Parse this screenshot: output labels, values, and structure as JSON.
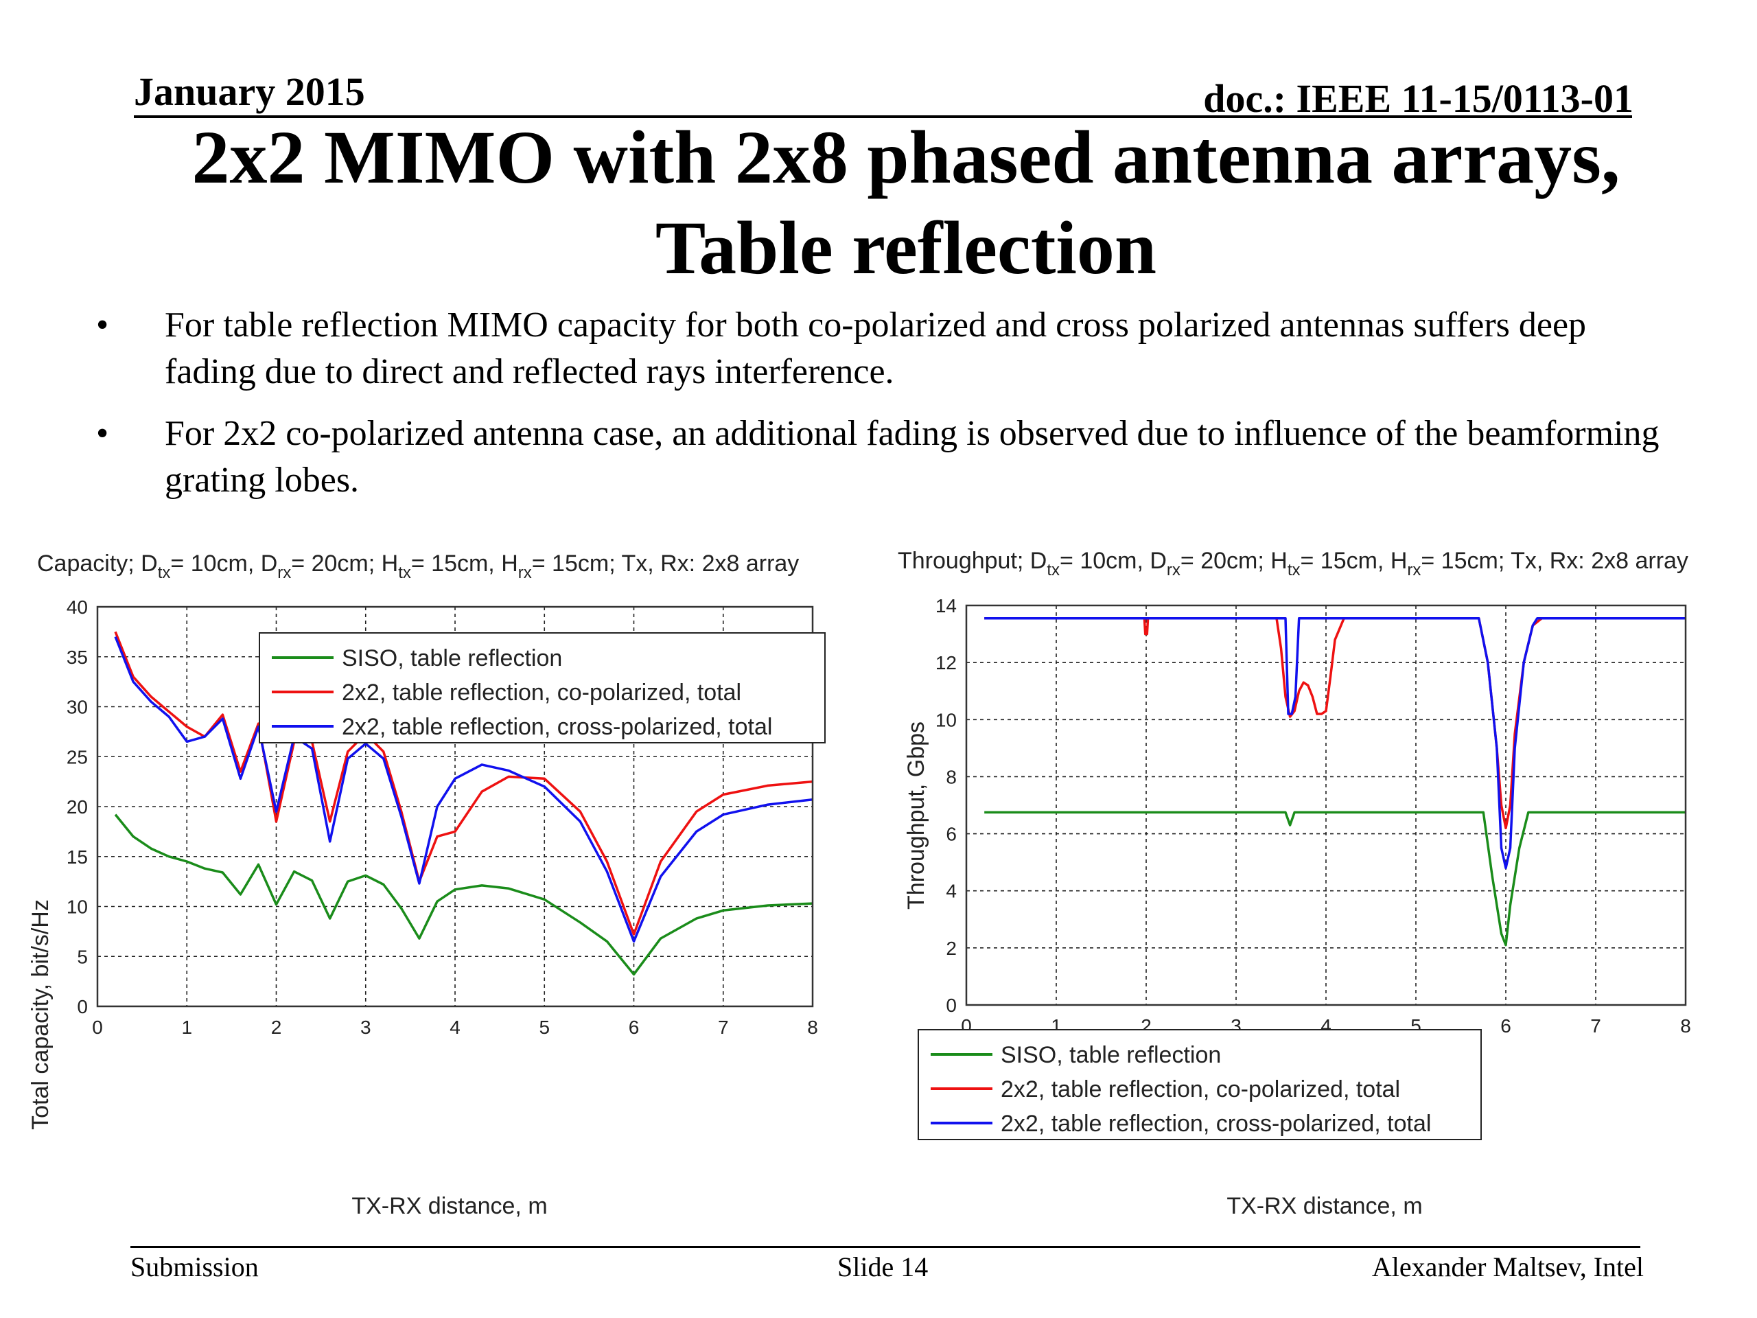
{
  "header": {
    "date": "January 2015",
    "doc": "doc.: IEEE 11-15/0113-01"
  },
  "title": {
    "line1": "2x2 MIMO with 2x8 phased antenna arrays,",
    "line2": "Table reflection"
  },
  "bullets": [
    {
      "marker": "•",
      "text": "For table reflection MIMO capacity for both co-polarized and cross polarized antennas suffers deep fading due to direct and reflected rays interference."
    },
    {
      "marker": "•",
      "text": "For 2x2 co-polarized antenna case, an additional fading is observed due to influence of the beamforming grating lobes."
    }
  ],
  "footer": {
    "left": "Submission",
    "center": "Slide 14",
    "right": "Alexander Maltsev, Intel"
  },
  "colors": {
    "siso": "#1a8c1a",
    "co_pol": "#ee1111",
    "cross_pol": "#1111ee"
  },
  "chart_data": [
    {
      "type": "line",
      "title": "Capacity; D_tx= 10cm, D_rx= 20cm; H_tx= 15cm, H_rx= 15cm; Tx, Rx: 2x8 array",
      "xlabel": "TX-RX distance, m",
      "ylabel": "Total capacity, bit/s/Hz",
      "xlim": [
        0,
        8
      ],
      "ylim": [
        0,
        40
      ],
      "xticks": [
        "0",
        "1",
        "2",
        "3",
        "4",
        "5",
        "6",
        "7",
        "8"
      ],
      "yticks": [
        "0",
        "5",
        "10",
        "15",
        "20",
        "25",
        "30",
        "35",
        "40"
      ],
      "grid": true,
      "legend_position": "top-right",
      "series": [
        {
          "name": "SISO, table reflection",
          "x": [
            0.2,
            0.4,
            0.6,
            0.8,
            1.0,
            1.2,
            1.4,
            1.6,
            1.8,
            2.0,
            2.2,
            2.4,
            2.6,
            2.8,
            3.0,
            3.2,
            3.4,
            3.6,
            3.8,
            4.0,
            4.3,
            4.6,
            5.0,
            5.4,
            5.7,
            6.0,
            6.3,
            6.7,
            7.0,
            7.5,
            8.0
          ],
          "y": [
            19.2,
            17,
            15.8,
            15,
            14.5,
            13.8,
            13.4,
            11.2,
            14.2,
            10.2,
            13.5,
            12.6,
            8.8,
            12.5,
            13.1,
            12.2,
            9.8,
            6.8,
            10.5,
            11.7,
            12.1,
            11.8,
            10.7,
            8.4,
            6.5,
            3.2,
            6.8,
            8.8,
            9.6,
            10.1,
            10.3
          ]
        },
        {
          "name": "2x2, table reflection, co-polarized, total",
          "x": [
            0.2,
            0.4,
            0.6,
            0.8,
            1.0,
            1.2,
            1.4,
            1.6,
            1.8,
            2.0,
            2.2,
            2.4,
            2.6,
            2.8,
            3.0,
            3.2,
            3.4,
            3.6,
            3.8,
            4.0,
            4.3,
            4.6,
            5.0,
            5.4,
            5.7,
            6.0,
            6.3,
            6.7,
            7.0,
            7.5,
            8.0
          ],
          "y": [
            37.5,
            33,
            31,
            29.5,
            28,
            27,
            29.2,
            23.5,
            28.3,
            18.5,
            26.5,
            26.5,
            18.5,
            25.5,
            27.3,
            25.5,
            19.5,
            12.5,
            17,
            17.5,
            21.5,
            23,
            22.8,
            19.5,
            14.5,
            7.2,
            14.5,
            19.5,
            21.2,
            22.1,
            22.5
          ]
        },
        {
          "name": "2x2, table reflection, cross-polarized, total",
          "x": [
            0.2,
            0.4,
            0.6,
            0.8,
            1.0,
            1.2,
            1.4,
            1.6,
            1.8,
            2.0,
            2.2,
            2.4,
            2.6,
            2.8,
            3.0,
            3.2,
            3.4,
            3.6,
            3.8,
            4.0,
            4.3,
            4.6,
            5.0,
            5.4,
            5.7,
            6.0,
            6.3,
            6.7,
            7.0,
            7.5,
            8.0
          ],
          "y": [
            37,
            32.5,
            30.5,
            29,
            26.5,
            27,
            28.8,
            22.8,
            28,
            19.5,
            27,
            25.8,
            16.5,
            24.8,
            26.3,
            24.8,
            19,
            12.3,
            20,
            22.8,
            24.2,
            23.6,
            22,
            18.5,
            13.5,
            6.5,
            13,
            17.5,
            19.2,
            20.2,
            20.7
          ]
        }
      ]
    },
    {
      "type": "line",
      "title": "Throughput; D_tx= 10cm, D_rx= 20cm; H_tx= 15cm, H_rx= 15cm; Tx, Rx: 2x8 array",
      "xlabel": "TX-RX distance, m",
      "ylabel": "Throughput, Gbps",
      "xlim": [
        0,
        8
      ],
      "ylim": [
        0,
        14
      ],
      "xticks": [
        "0",
        "1",
        "2",
        "3",
        "4",
        "5",
        "6",
        "7",
        "8"
      ],
      "yticks": [
        "0",
        "2",
        "4",
        "6",
        "8",
        "10",
        "12",
        "14"
      ],
      "grid": true,
      "legend_position": "bottom-left",
      "series": [
        {
          "name": "SISO, table reflection",
          "x": [
            0.2,
            3.55,
            3.6,
            3.65,
            5.7,
            5.75,
            5.85,
            5.95,
            6.0,
            6.05,
            6.15,
            6.25,
            6.3,
            8.0
          ],
          "y": [
            6.75,
            6.75,
            6.3,
            6.75,
            6.75,
            6.75,
            4.5,
            2.5,
            2.1,
            3.5,
            5.5,
            6.75,
            6.75,
            6.75
          ]
        },
        {
          "name": "2x2, table reflection, co-polarized, total",
          "x": [
            0.2,
            1.98,
            1.99,
            2.01,
            2.02,
            3.45,
            3.5,
            3.55,
            3.6,
            3.65,
            3.7,
            3.75,
            3.8,
            3.85,
            3.9,
            3.95,
            4.0,
            4.05,
            4.1,
            4.2,
            5.7,
            5.8,
            5.9,
            5.95,
            6.0,
            6.05,
            6.1,
            6.2,
            6.3,
            6.4,
            8.0
          ],
          "y": [
            13.55,
            13.55,
            13,
            13,
            13.55,
            13.55,
            12.5,
            10.8,
            10.1,
            10.3,
            11,
            11.3,
            11.2,
            10.8,
            10.2,
            10.2,
            10.3,
            11.5,
            12.8,
            13.55,
            13.55,
            12,
            9,
            7,
            6.2,
            7,
            9.5,
            12,
            13.3,
            13.55,
            13.55
          ]
        },
        {
          "name": "2x2, table reflection, cross-polarized, total",
          "x": [
            0.2,
            3.55,
            3.58,
            3.62,
            3.66,
            3.7,
            5.7,
            5.8,
            5.9,
            5.95,
            6.0,
            6.05,
            6.1,
            6.2,
            6.3,
            6.35,
            8.0
          ],
          "y": [
            13.55,
            13.55,
            10.2,
            10.2,
            10.8,
            13.55,
            13.55,
            12,
            9,
            5.5,
            4.8,
            5.5,
            9,
            12,
            13.3,
            13.55,
            13.55
          ]
        }
      ]
    }
  ]
}
